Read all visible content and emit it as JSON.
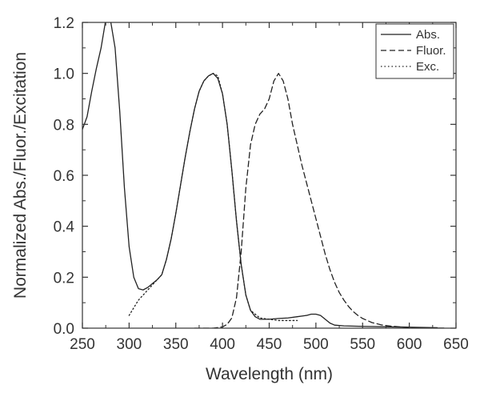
{
  "chart_data": {
    "type": "line",
    "title": "",
    "xlabel": "Wavelength (nm)",
    "ylabel": "Normalized Abs./Fluor./Excitation",
    "xlim": [
      250,
      650
    ],
    "ylim": [
      0,
      1.2
    ],
    "x_ticks": [
      250,
      300,
      350,
      400,
      450,
      500,
      550,
      600,
      650
    ],
    "y_ticks": [
      0.0,
      0.2,
      0.4,
      0.6,
      0.8,
      1.0,
      1.2
    ],
    "x_tick_labels": [
      "250",
      "300",
      "350",
      "400",
      "450",
      "500",
      "550",
      "600",
      "650"
    ],
    "y_tick_labels": [
      "0.0",
      "0.2",
      "0.4",
      "0.6",
      "0.8",
      "1.0",
      "1.2"
    ],
    "grid": false,
    "legend_position": "top-right",
    "series": [
      {
        "name": "Abs.",
        "style": "solid",
        "color": "#222222",
        "points": [
          [
            250,
            0.78
          ],
          [
            255,
            0.83
          ],
          [
            260,
            0.93
          ],
          [
            265,
            1.02
          ],
          [
            270,
            1.1
          ],
          [
            275,
            1.21
          ],
          [
            278,
            1.24
          ],
          [
            280,
            1.21
          ],
          [
            285,
            1.1
          ],
          [
            290,
            0.85
          ],
          [
            295,
            0.55
          ],
          [
            300,
            0.32
          ],
          [
            305,
            0.2
          ],
          [
            310,
            0.155
          ],
          [
            315,
            0.15
          ],
          [
            320,
            0.16
          ],
          [
            325,
            0.175
          ],
          [
            330,
            0.19
          ],
          [
            335,
            0.21
          ],
          [
            340,
            0.27
          ],
          [
            345,
            0.35
          ],
          [
            350,
            0.45
          ],
          [
            355,
            0.56
          ],
          [
            360,
            0.67
          ],
          [
            365,
            0.77
          ],
          [
            370,
            0.86
          ],
          [
            375,
            0.93
          ],
          [
            380,
            0.97
          ],
          [
            385,
            0.99
          ],
          [
            390,
            1.0
          ],
          [
            395,
            0.98
          ],
          [
            400,
            0.92
          ],
          [
            405,
            0.8
          ],
          [
            410,
            0.62
          ],
          [
            415,
            0.42
          ],
          [
            420,
            0.25
          ],
          [
            425,
            0.13
          ],
          [
            430,
            0.07
          ],
          [
            435,
            0.045
          ],
          [
            440,
            0.035
          ],
          [
            450,
            0.035
          ],
          [
            460,
            0.038
          ],
          [
            470,
            0.04
          ],
          [
            480,
            0.045
          ],
          [
            490,
            0.05
          ],
          [
            495,
            0.055
          ],
          [
            500,
            0.055
          ],
          [
            505,
            0.05
          ],
          [
            510,
            0.035
          ],
          [
            515,
            0.02
          ],
          [
            520,
            0.012
          ],
          [
            530,
            0.009
          ],
          [
            550,
            0.007
          ],
          [
            600,
            0.004
          ],
          [
            630,
            0.002
          ]
        ]
      },
      {
        "name": "Fluor.",
        "style": "dashed",
        "color": "#222222",
        "points": [
          [
            370,
            0.0
          ],
          [
            390,
            0.0
          ],
          [
            400,
            0.005
          ],
          [
            405,
            0.015
          ],
          [
            410,
            0.04
          ],
          [
            415,
            0.12
          ],
          [
            420,
            0.3
          ],
          [
            425,
            0.55
          ],
          [
            430,
            0.72
          ],
          [
            435,
            0.8
          ],
          [
            440,
            0.84
          ],
          [
            445,
            0.86
          ],
          [
            450,
            0.9
          ],
          [
            455,
            0.97
          ],
          [
            460,
            1.0
          ],
          [
            465,
            0.97
          ],
          [
            470,
            0.9
          ],
          [
            475,
            0.8
          ],
          [
            480,
            0.72
          ],
          [
            485,
            0.64
          ],
          [
            490,
            0.57
          ],
          [
            495,
            0.5
          ],
          [
            500,
            0.43
          ],
          [
            505,
            0.36
          ],
          [
            510,
            0.29
          ],
          [
            515,
            0.23
          ],
          [
            520,
            0.18
          ],
          [
            525,
            0.14
          ],
          [
            530,
            0.11
          ],
          [
            535,
            0.085
          ],
          [
            540,
            0.065
          ],
          [
            545,
            0.05
          ],
          [
            550,
            0.038
          ],
          [
            560,
            0.022
          ],
          [
            570,
            0.013
          ],
          [
            580,
            0.008
          ],
          [
            590,
            0.005
          ],
          [
            600,
            0.003
          ],
          [
            620,
            0.001
          ],
          [
            640,
            0.0
          ]
        ]
      },
      {
        "name": "Exc.",
        "style": "dotted",
        "color": "#222222",
        "points": [
          [
            300,
            0.05
          ],
          [
            305,
            0.08
          ],
          [
            310,
            0.11
          ],
          [
            315,
            0.13
          ],
          [
            320,
            0.15
          ],
          [
            325,
            0.17
          ],
          [
            330,
            0.19
          ],
          [
            335,
            0.21
          ],
          [
            340,
            0.27
          ],
          [
            345,
            0.35
          ],
          [
            350,
            0.45
          ],
          [
            355,
            0.56
          ],
          [
            360,
            0.67
          ],
          [
            365,
            0.77
          ],
          [
            370,
            0.86
          ],
          [
            375,
            0.93
          ],
          [
            380,
            0.97
          ],
          [
            385,
            0.99
          ],
          [
            390,
            1.0
          ],
          [
            395,
            0.99
          ],
          [
            400,
            0.92
          ],
          [
            405,
            0.8
          ],
          [
            410,
            0.62
          ],
          [
            415,
            0.42
          ],
          [
            420,
            0.25
          ],
          [
            425,
            0.13
          ],
          [
            430,
            0.07
          ],
          [
            440,
            0.04
          ],
          [
            450,
            0.035
          ],
          [
            460,
            0.03
          ],
          [
            470,
            0.03
          ],
          [
            480,
            0.03
          ]
        ]
      }
    ]
  }
}
